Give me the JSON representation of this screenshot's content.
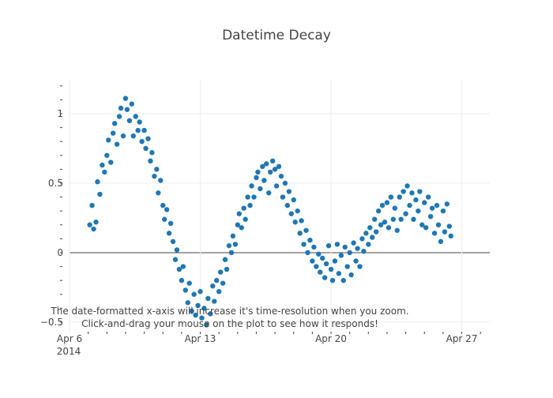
{
  "chart_data": {
    "type": "scatter",
    "title": "Datetime Decay",
    "xlabel": "",
    "ylabel": "",
    "x_axis_type": "date",
    "xlim": [
      "2014-04-06",
      "2014-04-28T12:00:00"
    ],
    "ylim": [
      -0.58,
      1.25
    ],
    "x_ticks": [
      {
        "value": "2014-04-06",
        "label": "Apr 6",
        "sublabel": "2014"
      },
      {
        "value": "2014-04-13",
        "label": "Apr 13"
      },
      {
        "value": "2014-04-20",
        "label": "Apr 20"
      },
      {
        "value": "2014-04-27",
        "label": "Apr 27"
      }
    ],
    "y_ticks": [
      {
        "value": -0.5,
        "label": "−0.5"
      },
      {
        "value": 0,
        "label": "0"
      },
      {
        "value": 0.5,
        "label": "0.5"
      },
      {
        "value": 1,
        "label": "1"
      }
    ],
    "grid": true,
    "zero_line": true,
    "marker_color": "#1f77b4",
    "annotation": {
      "line1": "The date-formatted x-axis will increase it's time-resolution when you zoom.",
      "line2": "Click-and-drag your mouse on the plot to see how it responds!"
    },
    "series": [
      {
        "values": [
          [
            "2014-04-07T02:00",
            0.2
          ],
          [
            "2014-04-07T05:00",
            0.34
          ],
          [
            "2014-04-07T07:00",
            0.17
          ],
          [
            "2014-04-07T10:00",
            0.22
          ],
          [
            "2014-04-07T12:00",
            0.51
          ],
          [
            "2014-04-07T15:00",
            0.42
          ],
          [
            "2014-04-07T18:00",
            0.63
          ],
          [
            "2014-04-07T21:00",
            0.58
          ],
          [
            "2014-04-08T00:00",
            0.7
          ],
          [
            "2014-04-08T02:00",
            0.81
          ],
          [
            "2014-04-08T05:00",
            0.65
          ],
          [
            "2014-04-08T08:00",
            0.86
          ],
          [
            "2014-04-08T10:00",
            0.93
          ],
          [
            "2014-04-08T13:00",
            0.78
          ],
          [
            "2014-04-08T16:00",
            0.98
          ],
          [
            "2014-04-08T18:00",
            1.04
          ],
          [
            "2014-04-08T21:00",
            0.84
          ],
          [
            "2014-04-09T00:00",
            1.11
          ],
          [
            "2014-04-09T02:00",
            1.03
          ],
          [
            "2014-04-09T05:00",
            0.95
          ],
          [
            "2014-04-09T08:00",
            1.07
          ],
          [
            "2014-04-09T10:00",
            0.84
          ],
          [
            "2014-04-09T13:00",
            0.98
          ],
          [
            "2014-04-09T16:00",
            0.88
          ],
          [
            "2014-04-09T18:00",
            0.94
          ],
          [
            "2014-04-09T21:00",
            0.8
          ],
          [
            "2014-04-10T00:00",
            0.88
          ],
          [
            "2014-04-10T02:00",
            0.75
          ],
          [
            "2014-04-10T05:00",
            0.82
          ],
          [
            "2014-04-10T08:00",
            0.66
          ],
          [
            "2014-04-10T10:00",
            0.72
          ],
          [
            "2014-04-10T13:00",
            0.55
          ],
          [
            "2014-04-10T16:00",
            0.6
          ],
          [
            "2014-04-10T18:00",
            0.43
          ],
          [
            "2014-04-10T21:00",
            0.52
          ],
          [
            "2014-04-11T00:00",
            0.34
          ],
          [
            "2014-04-11T02:00",
            0.24
          ],
          [
            "2014-04-11T05:00",
            0.31
          ],
          [
            "2014-04-11T08:00",
            0.14
          ],
          [
            "2014-04-11T10:00",
            0.21
          ],
          [
            "2014-04-11T13:00",
            0.08
          ],
          [
            "2014-04-11T16:00",
            -0.05
          ],
          [
            "2014-04-11T18:00",
            0.02
          ],
          [
            "2014-04-11T21:00",
            -0.12
          ],
          [
            "2014-04-12T00:00",
            -0.2
          ],
          [
            "2014-04-12T02:00",
            -0.1
          ],
          [
            "2014-04-12T05:00",
            -0.27
          ],
          [
            "2014-04-12T08:00",
            -0.36
          ],
          [
            "2014-04-12T10:00",
            -0.22
          ],
          [
            "2014-04-12T13:00",
            -0.42
          ],
          [
            "2014-04-12T16:00",
            -0.3
          ],
          [
            "2014-04-12T18:00",
            -0.45
          ],
          [
            "2014-04-12T21:00",
            -0.38
          ],
          [
            "2014-04-13T00:00",
            -0.28
          ],
          [
            "2014-04-13T02:00",
            -0.47
          ],
          [
            "2014-04-13T05:00",
            -0.4
          ],
          [
            "2014-04-13T08:00",
            -0.52
          ],
          [
            "2014-04-13T10:00",
            -0.33
          ],
          [
            "2014-04-13T13:00",
            -0.44
          ],
          [
            "2014-04-13T16:00",
            -0.24
          ],
          [
            "2014-04-13T18:00",
            -0.35
          ],
          [
            "2014-04-13T21:00",
            -0.2
          ],
          [
            "2014-04-14T00:00",
            -0.28
          ],
          [
            "2014-04-14T02:00",
            -0.14
          ],
          [
            "2014-04-14T05:00",
            -0.22
          ],
          [
            "2014-04-14T08:00",
            -0.05
          ],
          [
            "2014-04-14T10:00",
            -0.12
          ],
          [
            "2014-04-14T13:00",
            0.05
          ],
          [
            "2014-04-14T16:00",
            0.0
          ],
          [
            "2014-04-14T18:00",
            0.12
          ],
          [
            "2014-04-14T21:00",
            0.06
          ],
          [
            "2014-04-15T00:00",
            0.2
          ],
          [
            "2014-04-15T02:00",
            0.28
          ],
          [
            "2014-04-15T05:00",
            0.18
          ],
          [
            "2014-04-15T08:00",
            0.32
          ],
          [
            "2014-04-15T10:00",
            0.24
          ],
          [
            "2014-04-15T13:00",
            0.4
          ],
          [
            "2014-04-15T16:00",
            0.34
          ],
          [
            "2014-04-15T18:00",
            0.48
          ],
          [
            "2014-04-15T21:00",
            0.4
          ],
          [
            "2014-04-16T00:00",
            0.54
          ],
          [
            "2014-04-16T02:00",
            0.58
          ],
          [
            "2014-04-16T05:00",
            0.46
          ],
          [
            "2014-04-16T08:00",
            0.62
          ],
          [
            "2014-04-16T10:00",
            0.52
          ],
          [
            "2014-04-16T13:00",
            0.64
          ],
          [
            "2014-04-16T16:00",
            0.43
          ],
          [
            "2014-04-16T18:00",
            0.58
          ],
          [
            "2014-04-16T21:00",
            0.66
          ],
          [
            "2014-04-17T00:00",
            0.6
          ],
          [
            "2014-04-17T02:00",
            0.48
          ],
          [
            "2014-04-17T05:00",
            0.62
          ],
          [
            "2014-04-17T08:00",
            0.55
          ],
          [
            "2014-04-17T10:00",
            0.4
          ],
          [
            "2014-04-17T13:00",
            0.5
          ],
          [
            "2014-04-17T16:00",
            0.34
          ],
          [
            "2014-04-17T18:00",
            0.44
          ],
          [
            "2014-04-17T21:00",
            0.28
          ],
          [
            "2014-04-18T00:00",
            0.38
          ],
          [
            "2014-04-18T02:00",
            0.22
          ],
          [
            "2014-04-18T05:00",
            0.3
          ],
          [
            "2014-04-18T08:00",
            0.14
          ],
          [
            "2014-04-18T10:00",
            0.23
          ],
          [
            "2014-04-18T13:00",
            0.06
          ],
          [
            "2014-04-18T16:00",
            0.16
          ],
          [
            "2014-04-18T18:00",
            0.0
          ],
          [
            "2014-04-18T21:00",
            0.09
          ],
          [
            "2014-04-19T00:00",
            -0.06
          ],
          [
            "2014-04-19T02:00",
            0.04
          ],
          [
            "2014-04-19T05:00",
            -0.1
          ],
          [
            "2014-04-19T08:00",
            -0.01
          ],
          [
            "2014-04-19T10:00",
            -0.14
          ],
          [
            "2014-04-19T13:00",
            -0.04
          ],
          [
            "2014-04-19T16:00",
            -0.18
          ],
          [
            "2014-04-19T18:00",
            -0.08
          ],
          [
            "2014-04-19T21:00",
            0.05
          ],
          [
            "2014-04-20T00:00",
            -0.12
          ],
          [
            "2014-04-20T02:00",
            -0.2
          ],
          [
            "2014-04-20T05:00",
            -0.06
          ],
          [
            "2014-04-20T08:00",
            0.06
          ],
          [
            "2014-04-20T10:00",
            -0.15
          ],
          [
            "2014-04-20T13:00",
            -0.02
          ],
          [
            "2014-04-20T16:00",
            -0.2
          ],
          [
            "2014-04-20T18:00",
            0.04
          ],
          [
            "2014-04-20T21:00",
            -0.1
          ],
          [
            "2014-04-21T00:00",
            0.0
          ],
          [
            "2014-04-21T02:00",
            -0.16
          ],
          [
            "2014-04-21T05:00",
            0.07
          ],
          [
            "2014-04-21T08:00",
            -0.06
          ],
          [
            "2014-04-21T10:00",
            0.03
          ],
          [
            "2014-04-21T13:00",
            -0.1
          ],
          [
            "2014-04-21T16:00",
            0.1
          ],
          [
            "2014-04-21T18:00",
            0.01
          ],
          [
            "2014-04-21T21:00",
            0.14
          ],
          [
            "2014-04-22T00:00",
            0.06
          ],
          [
            "2014-04-22T02:00",
            0.18
          ],
          [
            "2014-04-22T05:00",
            0.11
          ],
          [
            "2014-04-22T08:00",
            0.24
          ],
          [
            "2014-04-22T10:00",
            0.15
          ],
          [
            "2014-04-22T13:00",
            0.3
          ],
          [
            "2014-04-22T16:00",
            0.2
          ],
          [
            "2014-04-22T18:00",
            0.34
          ],
          [
            "2014-04-22T21:00",
            0.22
          ],
          [
            "2014-04-23T00:00",
            0.36
          ],
          [
            "2014-04-23T02:00",
            0.18
          ],
          [
            "2014-04-23T05:00",
            0.4
          ],
          [
            "2014-04-23T08:00",
            0.24
          ],
          [
            "2014-04-23T10:00",
            0.32
          ],
          [
            "2014-04-23T13:00",
            0.16
          ],
          [
            "2014-04-23T16:00",
            0.4
          ],
          [
            "2014-04-23T18:00",
            0.24
          ],
          [
            "2014-04-23T21:00",
            0.44
          ],
          [
            "2014-04-24T00:00",
            0.28
          ],
          [
            "2014-04-24T02:00",
            0.48
          ],
          [
            "2014-04-24T05:00",
            0.34
          ],
          [
            "2014-04-24T08:00",
            0.43
          ],
          [
            "2014-04-24T10:00",
            0.24
          ],
          [
            "2014-04-24T13:00",
            0.38
          ],
          [
            "2014-04-24T16:00",
            0.3
          ],
          [
            "2014-04-24T18:00",
            0.44
          ],
          [
            "2014-04-24T21:00",
            0.2
          ],
          [
            "2014-04-25T00:00",
            0.36
          ],
          [
            "2014-04-25T02:00",
            0.18
          ],
          [
            "2014-04-25T05:00",
            0.4
          ],
          [
            "2014-04-25T08:00",
            0.26
          ],
          [
            "2014-04-25T10:00",
            0.32
          ],
          [
            "2014-04-25T13:00",
            0.14
          ],
          [
            "2014-04-25T16:00",
            0.34
          ],
          [
            "2014-04-25T18:00",
            0.2
          ],
          [
            "2014-04-25T21:00",
            0.08
          ],
          [
            "2014-04-26T00:00",
            0.3
          ],
          [
            "2014-04-26T02:00",
            0.15
          ],
          [
            "2014-04-26T05:00",
            0.35
          ],
          [
            "2014-04-26T08:00",
            0.19
          ],
          [
            "2014-04-26T10:00",
            0.12
          ]
        ]
      }
    ]
  }
}
